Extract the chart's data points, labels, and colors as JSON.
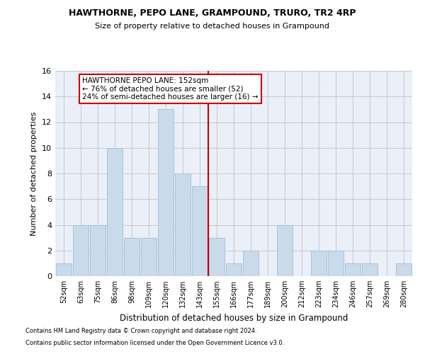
{
  "title1": "HAWTHORNE, PEPO LANE, GRAMPOUND, TRURO, TR2 4RP",
  "title2": "Size of property relative to detached houses in Grampound",
  "xlabel": "Distribution of detached houses by size in Grampound",
  "ylabel": "Number of detached properties",
  "categories": [
    "52sqm",
    "63sqm",
    "75sqm",
    "86sqm",
    "98sqm",
    "109sqm",
    "120sqm",
    "132sqm",
    "143sqm",
    "155sqm",
    "166sqm",
    "177sqm",
    "189sqm",
    "200sqm",
    "212sqm",
    "223sqm",
    "234sqm",
    "246sqm",
    "257sqm",
    "269sqm",
    "280sqm"
  ],
  "values": [
    1,
    4,
    4,
    10,
    3,
    3,
    13,
    8,
    7,
    3,
    1,
    2,
    0,
    4,
    0,
    2,
    2,
    1,
    1,
    0,
    1
  ],
  "bar_color": "#c9daea",
  "bar_edge_color": "#a8c4dc",
  "vline_x": 8.5,
  "vline_color": "#cc0000",
  "annotation_line1": "HAWTHORNE PEPO LANE: 152sqm",
  "annotation_line2": "← 76% of detached houses are smaller (52)",
  "annotation_line3": "24% of semi-detached houses are larger (16) →",
  "annotation_box_color": "#ffffff",
  "annotation_box_edge": "#cc0000",
  "ylim": [
    0,
    16
  ],
  "yticks": [
    0,
    2,
    4,
    6,
    8,
    10,
    12,
    14,
    16
  ],
  "grid_color": "#c8c8d0",
  "bg_color": "#eaeff8",
  "footnote1": "Contains HM Land Registry data © Crown copyright and database right 2024.",
  "footnote2": "Contains public sector information licensed under the Open Government Licence v3.0."
}
